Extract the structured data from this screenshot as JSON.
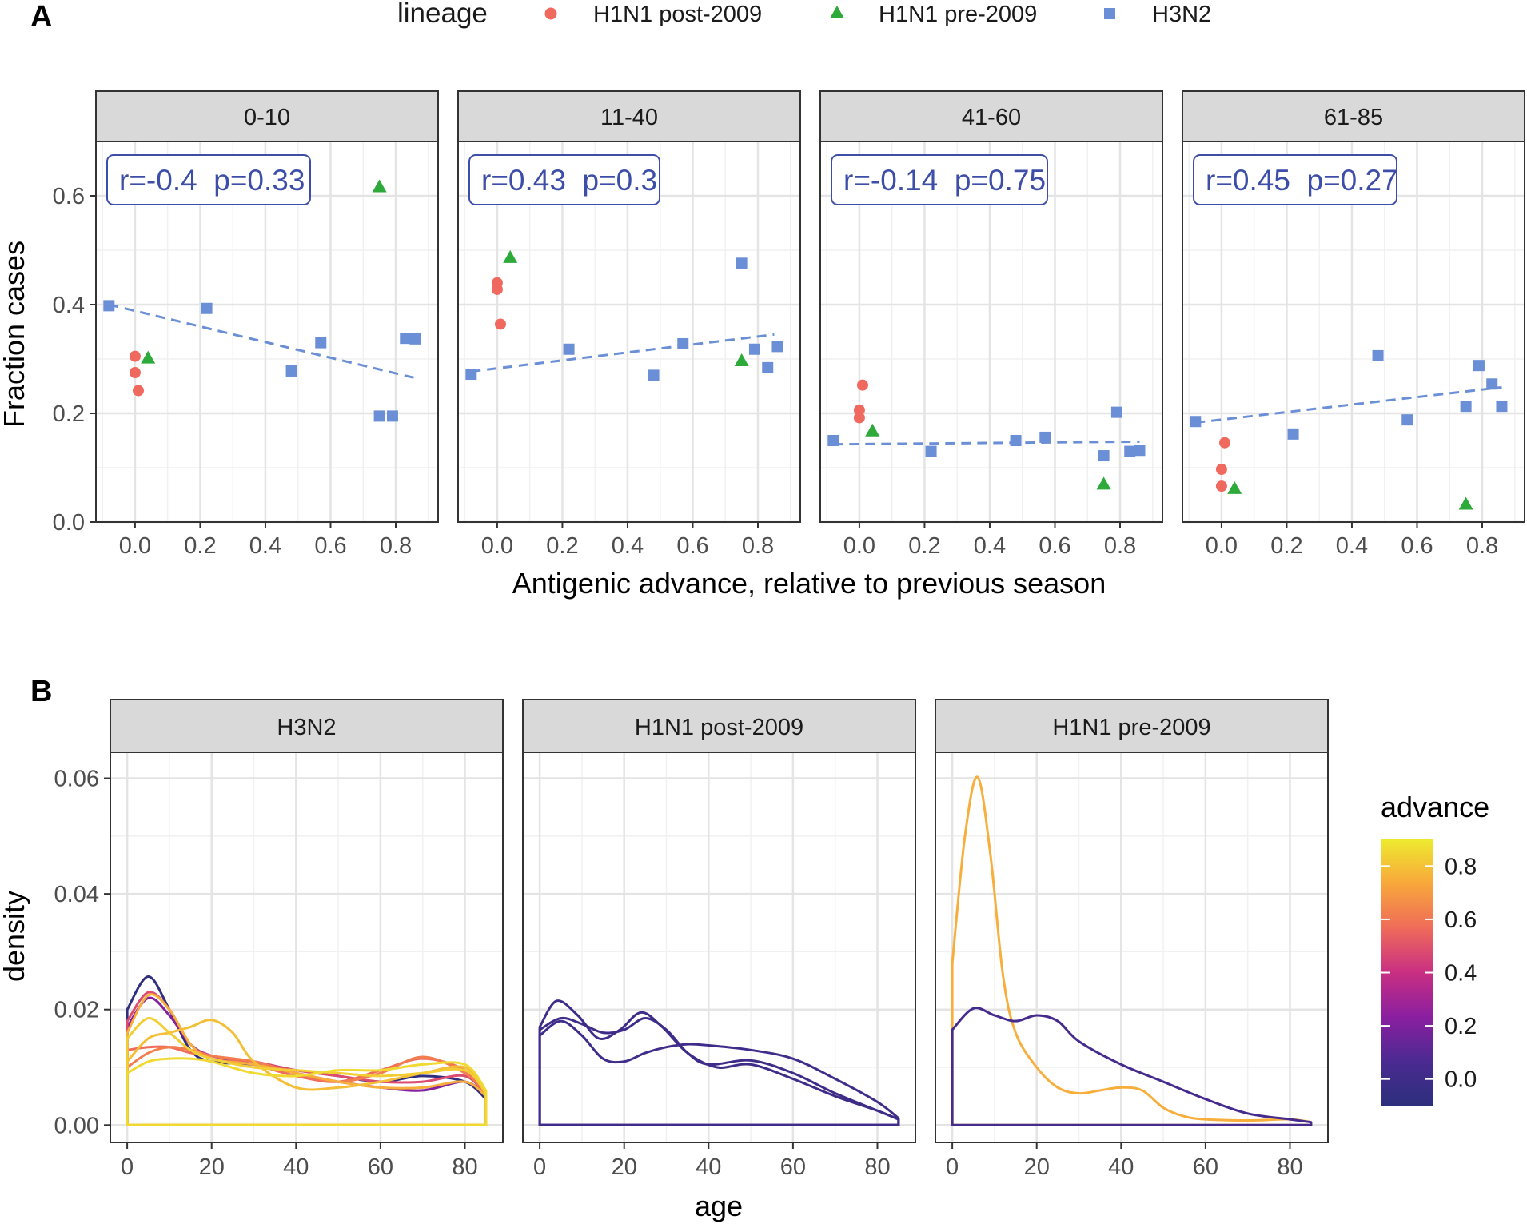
{
  "figure": {
    "panel_a_label": "A",
    "panel_b_label": "B",
    "legend": {
      "title": "lineage",
      "entries": [
        {
          "label": "H1N1 post-2009",
          "color": "#F0695F",
          "shape": "circle"
        },
        {
          "label": "H1N1 pre-2009",
          "color": "#2DAA3A",
          "shape": "triangle"
        },
        {
          "label": "H3N2",
          "color": "#6B8FD6",
          "shape": "square"
        }
      ]
    },
    "colorbar": {
      "title": "advance",
      "tick_labels": [
        "0.0",
        "0.2",
        "0.4",
        "0.6",
        "0.8"
      ],
      "tick_values": [
        0,
        0.2,
        0.4,
        0.6,
        0.8
      ],
      "range": [
        -0.1,
        0.9
      ],
      "stops": [
        "#2C2F7C",
        "#4B2A91",
        "#8A1FA0",
        "#C92F82",
        "#EF6B5A",
        "#F8A73B",
        "#EEEA2F"
      ]
    }
  },
  "chart_data": [
    {
      "type": "scatter",
      "title": "",
      "xlabel": "Antigenic advance, relative to previous season",
      "ylabel": "Fraction cases",
      "xlim": [
        -0.12,
        0.93
      ],
      "ylim": [
        0,
        0.7
      ],
      "x_ticks": [
        0,
        0.2,
        0.4,
        0.6,
        0.8
      ],
      "x_tick_labels": [
        "0.0",
        "0.2",
        "0.4",
        "0.6",
        "0.8"
      ],
      "y_ticks": [
        0,
        0.2,
        0.4,
        0.6
      ],
      "y_tick_labels": [
        "0.0",
        "0.2",
        "0.4",
        "0.6"
      ],
      "facets": [
        {
          "label": "0-10",
          "annotation": "r=-0.4  p=0.33",
          "trend": {
            "x": [
              -0.08,
              0.86
            ],
            "y": [
              0.4,
              0.265
            ]
          },
          "series": [
            {
              "name": "H1N1 post-2009",
              "points": [
                [
                  0.0,
                  0.305
                ],
                [
                  0.0,
                  0.275
                ],
                [
                  0.01,
                  0.242
                ]
              ]
            },
            {
              "name": "H1N1 pre-2009",
              "points": [
                [
                  0.04,
                  0.302
                ],
                [
                  0.75,
                  0.617
                ]
              ]
            },
            {
              "name": "H3N2",
              "points": [
                [
                  -0.08,
                  0.398
                ],
                [
                  0.22,
                  0.393
                ],
                [
                  0.48,
                  0.278
                ],
                [
                  0.57,
                  0.33
                ],
                [
                  0.75,
                  0.195
                ],
                [
                  0.79,
                  0.195
                ],
                [
                  0.83,
                  0.338
                ],
                [
                  0.86,
                  0.337
                ]
              ]
            }
          ]
        },
        {
          "label": "11-40",
          "annotation": "r=0.43  p=0.3",
          "trend": {
            "x": [
              -0.08,
              0.85
            ],
            "y": [
              0.277,
              0.345
            ]
          },
          "series": [
            {
              "name": "H1N1 post-2009",
              "points": [
                [
                  0.0,
                  0.44
                ],
                [
                  0.0,
                  0.428
                ],
                [
                  0.01,
                  0.364
                ]
              ]
            },
            {
              "name": "H1N1 pre-2009",
              "points": [
                [
                  0.04,
                  0.487
                ],
                [
                  0.75,
                  0.297
                ]
              ]
            },
            {
              "name": "H3N2",
              "points": [
                [
                  -0.08,
                  0.272
                ],
                [
                  0.22,
                  0.318
                ],
                [
                  0.48,
                  0.27
                ],
                [
                  0.57,
                  0.328
                ],
                [
                  0.75,
                  0.476
                ],
                [
                  0.79,
                  0.318
                ],
                [
                  0.83,
                  0.284
                ],
                [
                  0.86,
                  0.323
                ]
              ]
            }
          ]
        },
        {
          "label": "41-60",
          "annotation": "r=-0.14  p=0.75",
          "trend": {
            "x": [
              -0.08,
              0.86
            ],
            "y": [
              0.143,
              0.148
            ]
          },
          "series": [
            {
              "name": "H1N1 post-2009",
              "points": [
                [
                  0.01,
                  0.252
                ],
                [
                  0.0,
                  0.206
                ],
                [
                  0.0,
                  0.192
                ]
              ]
            },
            {
              "name": "H1N1 pre-2009",
              "points": [
                [
                  0.04,
                  0.168
                ],
                [
                  0.75,
                  0.07
                ]
              ]
            },
            {
              "name": "H3N2",
              "points": [
                [
                  -0.08,
                  0.15
                ],
                [
                  0.22,
                  0.13
                ],
                [
                  0.48,
                  0.15
                ],
                [
                  0.57,
                  0.156
                ],
                [
                  0.75,
                  0.122
                ],
                [
                  0.79,
                  0.202
                ],
                [
                  0.83,
                  0.13
                ],
                [
                  0.86,
                  0.132
                ]
              ]
            }
          ]
        },
        {
          "label": "61-85",
          "annotation": "r=0.45  p=0.27",
          "trend": {
            "x": [
              -0.08,
              0.86
            ],
            "y": [
              0.183,
              0.248
            ]
          },
          "series": [
            {
              "name": "H1N1 post-2009",
              "points": [
                [
                  0.01,
                  0.146
                ],
                [
                  0.0,
                  0.097
                ],
                [
                  0.0,
                  0.066
                ]
              ]
            },
            {
              "name": "H1N1 pre-2009",
              "points": [
                [
                  0.04,
                  0.062
                ],
                [
                  0.75,
                  0.033
                ]
              ]
            },
            {
              "name": "H3N2",
              "points": [
                [
                  -0.08,
                  0.185
                ],
                [
                  0.22,
                  0.162
                ],
                [
                  0.48,
                  0.306
                ],
                [
                  0.57,
                  0.188
                ],
                [
                  0.75,
                  0.213
                ],
                [
                  0.79,
                  0.288
                ],
                [
                  0.83,
                  0.254
                ],
                [
                  0.86,
                  0.213
                ]
              ]
            }
          ]
        }
      ]
    },
    {
      "type": "line",
      "title": "",
      "xlabel": "age",
      "ylabel": "density",
      "xlim": [
        -4,
        89
      ],
      "ylim": [
        -0.003,
        0.0645
      ],
      "x_ticks": [
        0,
        20,
        40,
        60,
        80
      ],
      "x_tick_labels": [
        "0",
        "20",
        "40",
        "60",
        "80"
      ],
      "y_ticks": [
        0,
        0.02,
        0.04,
        0.06
      ],
      "y_tick_labels": [
        "0.00",
        "0.02",
        "0.04",
        "0.06"
      ],
      "facets": [
        {
          "label": "H3N2",
          "series": [
            {
              "name": "advance -0.08",
              "advance": -0.08,
              "x": [
                0,
                5,
                10,
                15,
                20,
                30,
                40,
                50,
                60,
                70,
                80,
                85
              ],
              "y": [
                0.02,
                0.0257,
                0.02,
                0.013,
                0.011,
                0.0105,
                0.0095,
                0.0085,
                0.0075,
                0.0085,
                0.0075,
                0.0045
              ]
            },
            {
              "name": "advance 0.22",
              "advance": 0.22,
              "x": [
                0,
                5,
                10,
                15,
                20,
                30,
                40,
                50,
                60,
                70,
                80,
                85
              ],
              "y": [
                0.017,
                0.022,
                0.019,
                0.014,
                0.012,
                0.0105,
                0.009,
                0.0075,
                0.0065,
                0.006,
                0.0075,
                0.005
              ]
            },
            {
              "name": "advance 0.48",
              "advance": 0.48,
              "x": [
                0,
                5,
                10,
                15,
                20,
                30,
                40,
                50,
                60,
                70,
                80,
                85
              ],
              "y": [
                0.018,
                0.023,
                0.02,
                0.014,
                0.012,
                0.011,
                0.0095,
                0.0085,
                0.0075,
                0.0075,
                0.0085,
                0.005
              ]
            },
            {
              "name": "advance 0.57",
              "advance": 0.57,
              "x": [
                0,
                5,
                10,
                15,
                20,
                30,
                40,
                50,
                60,
                70,
                80,
                85
              ],
              "y": [
                0.013,
                0.0135,
                0.0135,
                0.0125,
                0.012,
                0.0105,
                0.0085,
                0.0075,
                0.0095,
                0.0115,
                0.0095,
                0.005
              ]
            },
            {
              "name": "advance 0.62",
              "advance": 0.62,
              "x": [
                0,
                5,
                10,
                15,
                20,
                30,
                40,
                50,
                60,
                70,
                80,
                85
              ],
              "y": [
                0.01,
                0.0125,
                0.0135,
                0.013,
                0.012,
                0.011,
                0.009,
                0.0075,
                0.009,
                0.0118,
                0.009,
                0.0055
              ]
            },
            {
              "name": "advance 0.75",
              "advance": 0.75,
              "x": [
                0,
                5,
                10,
                15,
                20,
                30,
                40,
                50,
                60,
                70,
                80,
                85
              ],
              "y": [
                0.016,
                0.0225,
                0.02,
                0.014,
                0.0115,
                0.0105,
                0.009,
                0.0075,
                0.0065,
                0.0065,
                0.0075,
                0.005
              ]
            },
            {
              "name": "advance 0.79",
              "advance": 0.79,
              "x": [
                0,
                5,
                10,
                15,
                20,
                25,
                30,
                40,
                50,
                60,
                70,
                80,
                85
              ],
              "y": [
                0.011,
                0.015,
                0.016,
                0.017,
                0.0182,
                0.016,
                0.011,
                0.0065,
                0.0065,
                0.0075,
                0.009,
                0.01,
                0.0055
              ]
            },
            {
              "name": "advance 0.83",
              "advance": 0.83,
              "x": [
                0,
                5,
                10,
                15,
                20,
                30,
                40,
                50,
                60,
                70,
                80,
                85
              ],
              "y": [
                0.015,
                0.0185,
                0.016,
                0.013,
                0.0115,
                0.01,
                0.0095,
                0.009,
                0.0085,
                0.009,
                0.0095,
                0.0055
              ]
            },
            {
              "name": "advance 0.86",
              "advance": 0.86,
              "x": [
                0,
                5,
                10,
                15,
                20,
                30,
                40,
                50,
                60,
                70,
                80,
                85
              ],
              "y": [
                0.009,
                0.011,
                0.0115,
                0.0115,
                0.011,
                0.009,
                0.0085,
                0.0095,
                0.0095,
                0.0105,
                0.0105,
                0.006
              ]
            }
          ]
        },
        {
          "label": "H1N1 post-2009",
          "series": [
            {
              "name": "advance 0.0 (a)",
              "advance": 0.0,
              "x": [
                0,
                4,
                9,
                14,
                19,
                24,
                29,
                35,
                42,
                50,
                60,
                70,
                80,
                85
              ],
              "y": [
                0.017,
                0.0215,
                0.019,
                0.015,
                0.0165,
                0.0195,
                0.017,
                0.0125,
                0.01,
                0.0105,
                0.008,
                0.005,
                0.0025,
                0.001
              ]
            },
            {
              "name": "advance 0.0 (b)",
              "advance": 0.0,
              "x": [
                0,
                5,
                10,
                15,
                20,
                25,
                30,
                35,
                40,
                50,
                60,
                70,
                80,
                85
              ],
              "y": [
                0.0165,
                0.0185,
                0.0175,
                0.016,
                0.0165,
                0.0185,
                0.0165,
                0.0125,
                0.0105,
                0.0112,
                0.009,
                0.0055,
                0.0025,
                0.001
              ]
            },
            {
              "name": "advance 0.01",
              "advance": 0.01,
              "x": [
                0,
                5,
                10,
                15,
                20,
                25,
                30,
                35,
                40,
                50,
                60,
                70,
                80,
                85
              ],
              "y": [
                0.0155,
                0.018,
                0.0155,
                0.0115,
                0.011,
                0.0125,
                0.0135,
                0.014,
                0.0138,
                0.013,
                0.0115,
                0.008,
                0.004,
                0.0012
              ]
            }
          ]
        },
        {
          "label": "H1N1 pre-2009",
          "series": [
            {
              "name": "advance 0.75",
              "advance": 0.75,
              "x": [
                0,
                3,
                6,
                9,
                12,
                15,
                20,
                25,
                30,
                35,
                40,
                45,
                50,
                55,
                60,
                70,
                80,
                85
              ],
              "y": [
                0.028,
                0.05,
                0.0602,
                0.047,
                0.026,
                0.016,
                0.01,
                0.0065,
                0.0055,
                0.006,
                0.0065,
                0.006,
                0.003,
                0.0015,
                0.001,
                0.0008,
                0.001,
                0.0005
              ]
            },
            {
              "name": "advance 0.04",
              "advance": 0.04,
              "x": [
                0,
                5,
                10,
                15,
                20,
                25,
                30,
                40,
                50,
                60,
                70,
                80,
                85
              ],
              "y": [
                0.0165,
                0.0202,
                0.019,
                0.018,
                0.019,
                0.018,
                0.0145,
                0.0105,
                0.0075,
                0.0045,
                0.002,
                0.001,
                0.0005
              ]
            }
          ]
        }
      ]
    }
  ]
}
